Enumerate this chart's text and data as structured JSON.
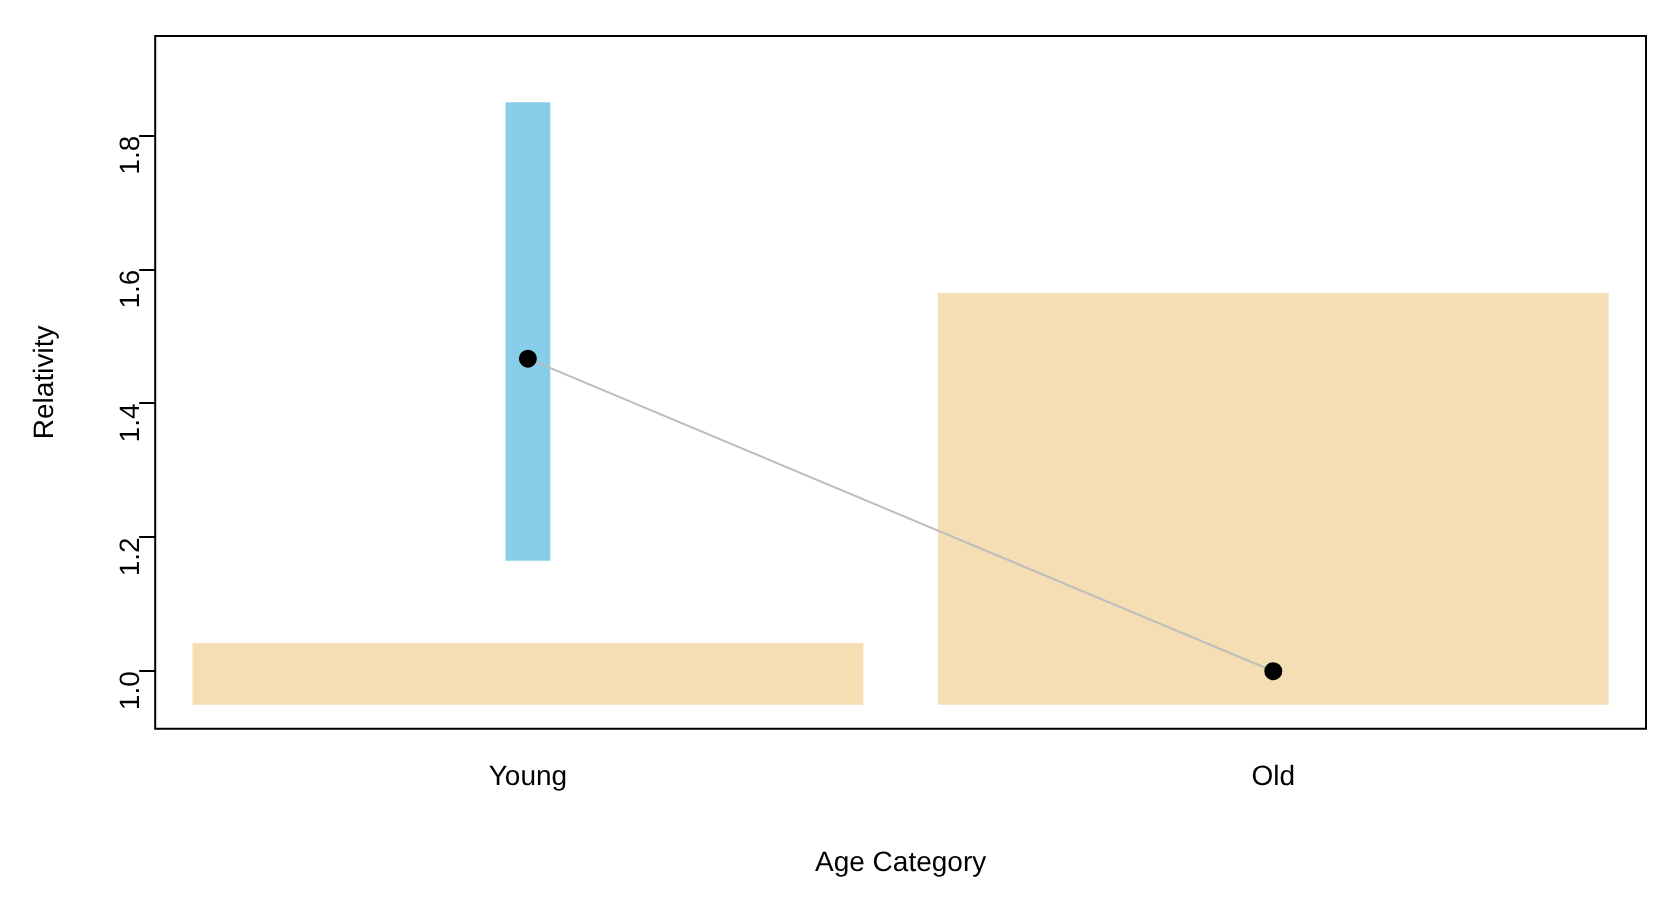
{
  "chart_data": {
    "type": "bar",
    "xlabel": "Age Category",
    "ylabel": "Relativity",
    "categories": [
      "Young",
      "Old"
    ],
    "ylim": [
      0.914,
      1.949
    ],
    "yticks": [
      {
        "value": 1.0,
        "label": "1.0"
      },
      {
        "value": 1.2,
        "label": "1.2"
      },
      {
        "value": 1.4,
        "label": "1.4"
      },
      {
        "value": 1.6,
        "label": "1.6"
      },
      {
        "value": 1.8,
        "label": "1.8"
      }
    ],
    "grid": false,
    "legend": false,
    "series": [
      {
        "color": "#f5deb3",
        "base": [
          0.95,
          0.95
        ],
        "values": [
          0.092,
          0.615
        ]
      },
      {
        "color": "#87ceeb",
        "base": [
          1.165,
          null
        ],
        "values": [
          0.685,
          null
        ]
      },
      {
        "type": "line",
        "color": "#bebebe",
        "colors": [
          "#000000",
          "#000000"
        ],
        "marker": "circle",
        "values": [
          1.467,
          1.0
        ]
      }
    ]
  }
}
